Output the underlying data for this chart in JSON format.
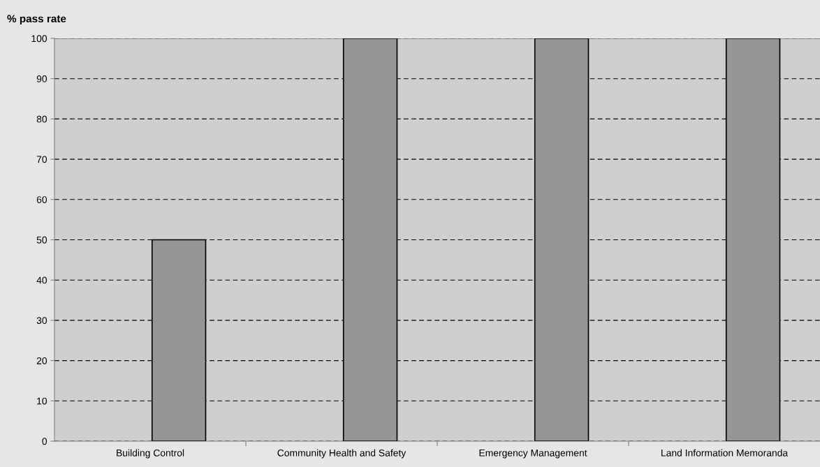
{
  "chart_data": {
    "type": "bar",
    "ylabel": "% pass rate",
    "categories": [
      "Building Control",
      "Community Health and Safety",
      "Emergency Management",
      "Land Information Memoranda"
    ],
    "values": [
      50,
      100,
      100,
      100
    ],
    "color": "#969696",
    "ylim": [
      0,
      100
    ],
    "yticks": [
      0,
      10,
      20,
      30,
      40,
      50,
      60,
      70,
      80,
      90,
      100
    ],
    "grid": "y",
    "legend": false
  }
}
